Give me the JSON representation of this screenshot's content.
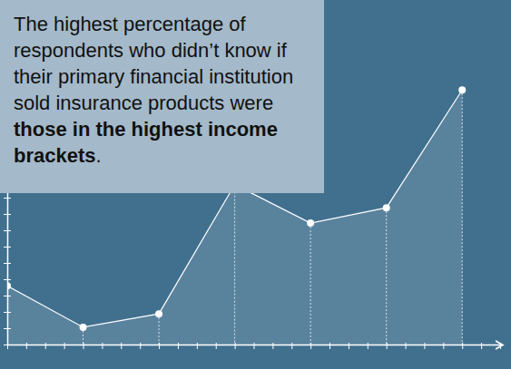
{
  "chart_data": {
    "type": "line",
    "annotation": {
      "text": "The highest percentage of respondents who didn’t know if their primary financial institution sold insurance products were",
      "emphasis": "those in the highest income brackets",
      "end": "."
    },
    "x": [
      0,
      1,
      2,
      3,
      4,
      5,
      6
    ],
    "values": [
      18,
      5.3,
      9.4,
      49,
      37.2,
      41.9,
      78
    ],
    "color": "#ffffff",
    "xlim": [
      0,
      6.5
    ],
    "xticks": [
      0,
      0.25,
      0.5,
      0.75,
      1,
      1.25,
      1.5,
      1.75,
      2,
      2.25,
      2.5,
      2.75,
      3,
      3.25,
      3.5,
      3.75,
      4,
      4.25,
      4.5,
      4.75,
      5,
      5.25,
      5.5,
      5.75,
      6,
      6.25,
      6.5
    ],
    "ylim": [
      0,
      100
    ],
    "yticks": [
      0,
      5,
      10,
      15,
      20,
      25,
      30,
      35,
      40,
      45,
      50,
      55,
      60,
      65,
      70,
      75,
      80,
      85,
      90,
      95,
      100
    ],
    "tick_labels": false,
    "grid": false
  }
}
